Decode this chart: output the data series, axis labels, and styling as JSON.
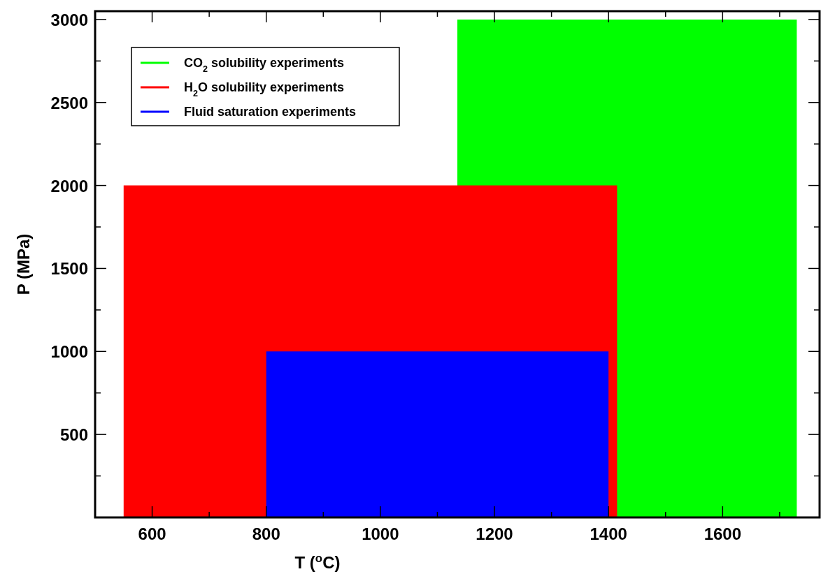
{
  "chart_data": {
    "type": "area",
    "xlabel": "T ($^{o}$C)",
    "ylabel": "P (MPa)",
    "xlim": [
      500,
      1770
    ],
    "ylim": [
      0,
      3050
    ],
    "xticks": [
      600,
      {
        "value": 700,
        "label": null
      },
      800,
      {
        "value": 900,
        "label": null
      },
      1000,
      {
        "value": 1100,
        "label": null
      },
      1200,
      {
        "value": 1300,
        "label": null
      },
      1400,
      {
        "value": 1500,
        "label": null
      },
      1600,
      {
        "value": 1700,
        "label": null
      }
    ],
    "yticks": [
      {
        "value": 250,
        "label": null
      },
      500,
      {
        "value": 750,
        "label": null
      },
      1000,
      {
        "value": 1250,
        "label": null
      },
      1500,
      {
        "value": 1750,
        "label": null
      },
      2000,
      {
        "value": 2250,
        "label": null
      },
      2500,
      {
        "value": 2750,
        "label": null
      },
      3000
    ],
    "legend": "top left",
    "grid": false,
    "series": [
      {
        "name": "CO$_{2}$ solubility experiments",
        "color": "#00ff00",
        "x": [
          1135,
          1730
        ],
        "values": [
          3000,
          3000
        ]
      },
      {
        "name": "H$_{2}$O solubility experiments",
        "color": "#ff0000",
        "x": [
          550,
          1415
        ],
        "values": [
          2000,
          2000
        ]
      },
      {
        "name": "Fluid saturation experiments",
        "color": "#0000ff",
        "x": [
          800,
          1400
        ],
        "values": [
          1000,
          1000
        ]
      }
    ]
  }
}
